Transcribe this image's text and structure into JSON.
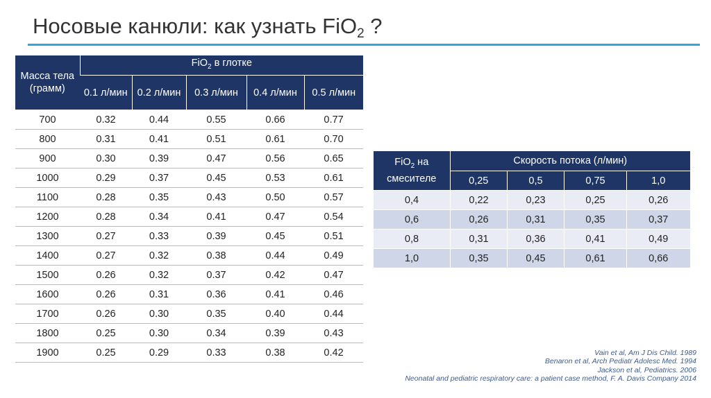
{
  "header": {
    "title": {
      "text": "Носовые канюли: как узнать FiO",
      "sub": "2",
      "tail": " ?"
    }
  },
  "table1": {
    "corner": "Масса тела (грамм)",
    "group": {
      "text": "FiO",
      "sub": "2",
      "tail": " в глотке"
    },
    "columns": [
      "0.1 л/мин",
      "0.2 л/мин",
      "0.3 л/мин",
      "0.4 л/мин",
      "0.5 л/мин"
    ],
    "rows": [
      [
        "700",
        "0.32",
        "0.44",
        "0.55",
        "0.66",
        "0.77"
      ],
      [
        "800",
        "0.31",
        "0.41",
        "0.51",
        "0.61",
        "0.70"
      ],
      [
        "900",
        "0.30",
        "0.39",
        "0.47",
        "0.56",
        "0.65"
      ],
      [
        "1000",
        "0.29",
        "0.37",
        "0.45",
        "0.53",
        "0.61"
      ],
      [
        "1100",
        "0.28",
        "0.35",
        "0.43",
        "0.50",
        "0.57"
      ],
      [
        "1200",
        "0.28",
        "0.34",
        "0.41",
        "0.47",
        "0.54"
      ],
      [
        "1300",
        "0.27",
        "0.33",
        "0.39",
        "0.45",
        "0.51"
      ],
      [
        "1400",
        "0.27",
        "0.32",
        "0.38",
        "0.44",
        "0.49"
      ],
      [
        "1500",
        "0.26",
        "0.32",
        "0.37",
        "0.42",
        "0.47"
      ],
      [
        "1600",
        "0.26",
        "0.31",
        "0.36",
        "0.41",
        "0.46"
      ],
      [
        "1700",
        "0.26",
        "0.30",
        "0.35",
        "0.40",
        "0.44"
      ],
      [
        "1800",
        "0.25",
        "0.30",
        "0.34",
        "0.39",
        "0.43"
      ],
      [
        "1900",
        "0.25",
        "0.29",
        "0.33",
        "0.38",
        "0.42"
      ]
    ]
  },
  "table2": {
    "corner": {
      "text": "FiO",
      "sub": "2",
      "tail": " на смесителе"
    },
    "group": "Скорость потока (л/мин)",
    "columns": [
      "0,25",
      "0,5",
      "0,75",
      "1,0"
    ],
    "rows": [
      [
        "0,4",
        "0,22",
        "0,23",
        "0,25",
        "0,26"
      ],
      [
        "0,6",
        "0,26",
        "0,31",
        "0,35",
        "0,37"
      ],
      [
        "0,8",
        "0,31",
        "0,36",
        "0,41",
        "0,49"
      ],
      [
        "1,0",
        "0,35",
        "0,45",
        "0,61",
        "0,66"
      ]
    ]
  },
  "references": [
    "Vain et al, Am J Dis Child. 1989",
    "Benaron et al, Arch Pediatr Adolesc Med. 1994",
    "Jackson et al, Pediatrics. 2006",
    "Neonatal and pediatric respiratory care: a patient case method, F. A. Davis Company 2014"
  ]
}
